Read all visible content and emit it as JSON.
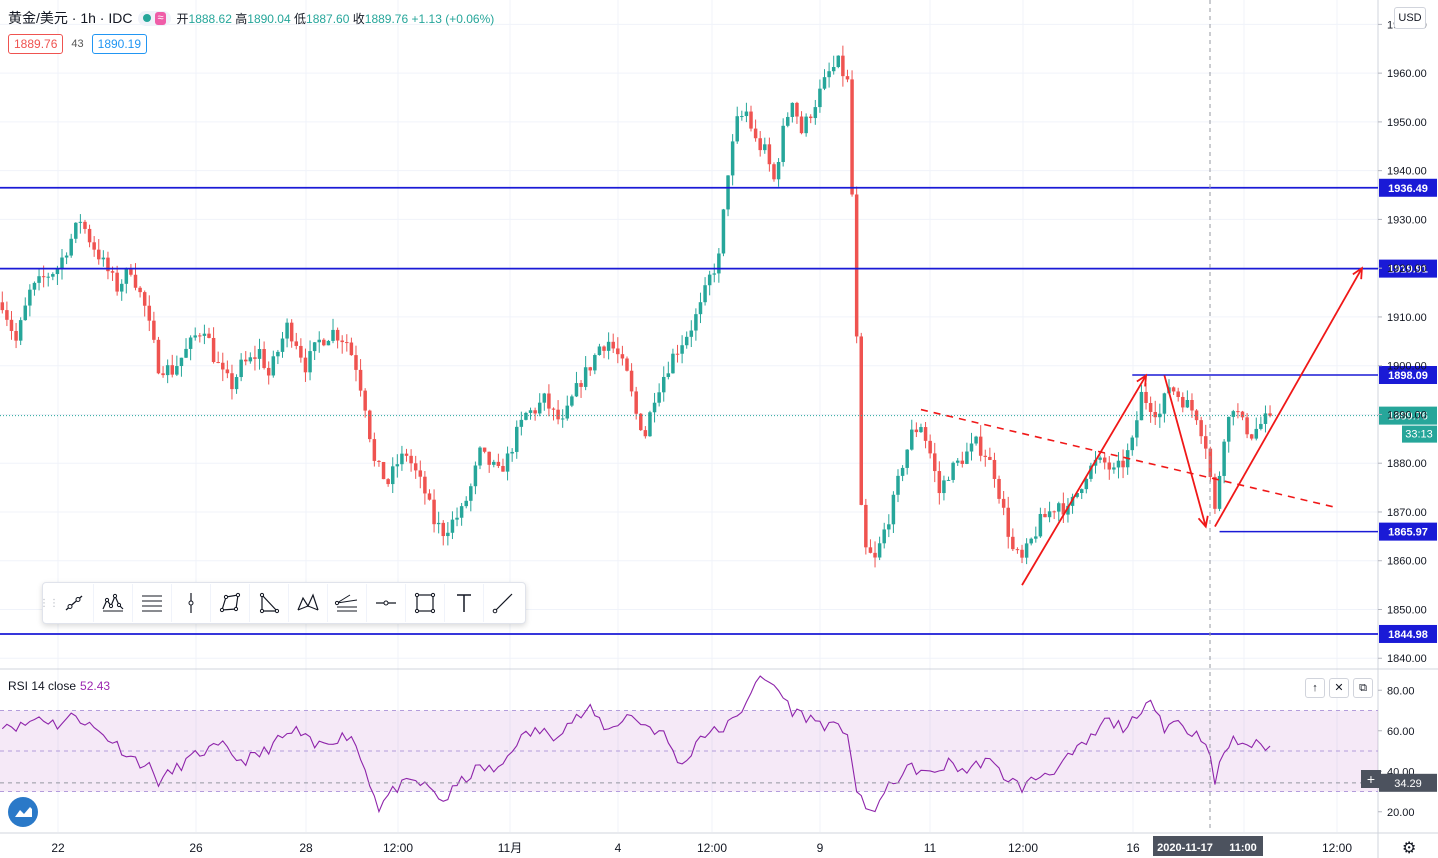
{
  "header": {
    "symbol": "黄金/美元 · 1h · IDC",
    "open_label": "开",
    "open": "1888.62",
    "high_label": "高",
    "high": "1890.04",
    "low_label": "低",
    "low": "1887.60",
    "close_label": "收",
    "close": "1889.76",
    "change": "+1.13 (+0.06%)"
  },
  "quote": {
    "bid": "1889.76",
    "spread": "43",
    "ask": "1890.19"
  },
  "currency_button": "USD",
  "rsi": {
    "label": "RSI 14 close",
    "value": "52.43",
    "crosshair_value": "34.29",
    "ylim": [
      10,
      90
    ],
    "ticks": [
      "80.00",
      "60.00",
      "40.00",
      "20.00"
    ],
    "upper": 70,
    "lower": 30
  },
  "time_axis": {
    "labels": [
      "22",
      "26",
      "28",
      "12:00",
      "11月",
      "4",
      "12:00",
      "9",
      "11",
      "12:00",
      "16",
      "12:00"
    ],
    "current_time": "2020-11-17",
    "current_hour": "11:00"
  },
  "toolbar": {
    "tools": [
      "trend-line-icon",
      "pattern-icon",
      "fib-icon",
      "vertical-line-icon",
      "polygon-icon",
      "triangle-icon",
      "xabcd-icon",
      "fib-fan-icon",
      "horizontal-line-icon",
      "rectangle-icon",
      "text-icon",
      "ray-icon"
    ]
  },
  "chart_data": {
    "type": "candlestick",
    "ylim": [
      1838,
      1975
    ],
    "y_ticks": [
      1970,
      1960,
      1950,
      1940,
      1930,
      1920,
      1910,
      1900,
      1890,
      1880,
      1870,
      1860,
      1850,
      1840
    ],
    "price_tick_labels": [
      "1970.00",
      "1960.00",
      "1950.00",
      "1940.00",
      "1930.00",
      "1920.00",
      "1910.00",
      "1900.00",
      "1890.00",
      "1880.00",
      "1870.00",
      "1860.00",
      "1850.00",
      "1840.00"
    ],
    "grid": true,
    "current_price": "1889.76",
    "countdown": "33:13",
    "horizontal_levels": [
      {
        "value": 1936.49,
        "label": "1936.49"
      },
      {
        "value": 1919.91,
        "label": "1919.91"
      },
      {
        "value": 1898.09,
        "label": "1898.09"
      },
      {
        "value": 1865.97,
        "label": "1865.97"
      },
      {
        "value": 1844.98,
        "label": "1844.98"
      }
    ],
    "price_path": [
      [
        0,
        1913
      ],
      [
        3,
        1905
      ],
      [
        6,
        1915
      ],
      [
        9,
        1918
      ],
      [
        12,
        1920
      ],
      [
        15,
        1926
      ],
      [
        17,
        1930
      ],
      [
        19,
        1926
      ],
      [
        22,
        1921
      ],
      [
        25,
        1916
      ],
      [
        28,
        1920
      ],
      [
        31,
        1912
      ],
      [
        34,
        1900
      ],
      [
        37,
        1899
      ],
      [
        40,
        1903
      ],
      [
        42,
        1906
      ],
      [
        44,
        1908
      ],
      [
        46,
        1902
      ],
      [
        48,
        1898
      ],
      [
        50,
        1896
      ],
      [
        52,
        1900
      ],
      [
        54,
        1901
      ],
      [
        56,
        1903
      ],
      [
        58,
        1898
      ],
      [
        60,
        1903
      ],
      [
        62,
        1908
      ],
      [
        64,
        1905
      ],
      [
        66,
        1900
      ],
      [
        69,
        1905
      ],
      [
        72,
        1907
      ],
      [
        75,
        1905
      ],
      [
        77,
        1900
      ],
      [
        79,
        1892
      ],
      [
        81,
        1880
      ],
      [
        84,
        1876
      ],
      [
        86,
        1880
      ],
      [
        88,
        1882
      ],
      [
        90,
        1878
      ],
      [
        92,
        1874
      ],
      [
        94,
        1868
      ],
      [
        96,
        1866
      ],
      [
        98,
        1868
      ],
      [
        100,
        1870
      ],
      [
        102,
        1875
      ],
      [
        104,
        1882
      ],
      [
        106,
        1880
      ],
      [
        108,
        1878
      ],
      [
        110,
        1881
      ],
      [
        112,
        1886
      ],
      [
        114,
        1890
      ],
      [
        116,
        1891
      ],
      [
        118,
        1893
      ],
      [
        120,
        1890
      ],
      [
        122,
        1888
      ],
      [
        124,
        1893
      ],
      [
        126,
        1897
      ],
      [
        128,
        1900
      ],
      [
        130,
        1904
      ],
      [
        132,
        1905
      ],
      [
        134,
        1902
      ],
      [
        136,
        1898
      ],
      [
        138,
        1890
      ],
      [
        140,
        1886
      ],
      [
        142,
        1894
      ],
      [
        144,
        1898
      ],
      [
        146,
        1902
      ],
      [
        148,
        1905
      ],
      [
        150,
        1908
      ],
      [
        152,
        1912
      ],
      [
        154,
        1918
      ],
      [
        156,
        1922
      ],
      [
        158,
        1940
      ],
      [
        160,
        1950
      ],
      [
        162,
        1952
      ],
      [
        164,
        1946
      ],
      [
        166,
        1944
      ],
      [
        168,
        1938
      ],
      [
        170,
        1948
      ],
      [
        172,
        1955
      ],
      [
        174,
        1948
      ],
      [
        176,
        1952
      ],
      [
        178,
        1956
      ],
      [
        180,
        1960
      ],
      [
        182,
        1962
      ],
      [
        184,
        1958
      ],
      [
        185,
        1935
      ],
      [
        186,
        1905
      ],
      [
        187,
        1870
      ],
      [
        188,
        1862
      ],
      [
        190,
        1860
      ],
      [
        192,
        1866
      ],
      [
        194,
        1872
      ],
      [
        196,
        1880
      ],
      [
        198,
        1886
      ],
      [
        200,
        1888
      ],
      [
        202,
        1882
      ],
      [
        204,
        1874
      ],
      [
        206,
        1878
      ],
      [
        208,
        1880
      ],
      [
        210,
        1882
      ],
      [
        212,
        1884
      ],
      [
        214,
        1882
      ],
      [
        216,
        1878
      ],
      [
        218,
        1870
      ],
      [
        220,
        1862
      ],
      [
        222,
        1860
      ],
      [
        224,
        1864
      ],
      [
        226,
        1868
      ],
      [
        228,
        1870
      ],
      [
        230,
        1872
      ],
      [
        232,
        1870
      ],
      [
        234,
        1874
      ],
      [
        236,
        1878
      ],
      [
        238,
        1880
      ],
      [
        240,
        1880
      ],
      [
        242,
        1878
      ],
      [
        244,
        1880
      ],
      [
        246,
        1884
      ],
      [
        248,
        1894
      ],
      [
        250,
        1892
      ],
      [
        252,
        1890
      ],
      [
        254,
        1896
      ],
      [
        256,
        1894
      ],
      [
        258,
        1892
      ],
      [
        260,
        1890
      ],
      [
        262,
        1884
      ],
      [
        264,
        1870
      ],
      [
        266,
        1886
      ],
      [
        268,
        1892
      ],
      [
        270,
        1888
      ],
      [
        272,
        1886
      ],
      [
        274,
        1888
      ],
      [
        276,
        1889.76
      ]
    ],
    "drawings": {
      "arrows": [
        {
          "from": [
            222,
            1855
          ],
          "to": [
            249,
            1898
          ]
        },
        {
          "from": [
            253,
            1898
          ],
          "to": [
            262,
            1867
          ]
        },
        {
          "from": [
            264,
            1867
          ],
          "to": [
            296,
            1920
          ]
        }
      ],
      "dashed_lines": [
        {
          "from": [
            200,
            1891
          ],
          "to": [
            290,
            1871
          ]
        }
      ],
      "segments": [
        {
          "from": [
            246,
            1898.09
          ],
          "to": [
            322,
            1898.09
          ]
        },
        {
          "from": [
            265,
            1865.97
          ],
          "to": [
            322,
            1865.97
          ]
        }
      ]
    }
  },
  "rsi_data": {
    "series": [
      [
        0,
        64
      ],
      [
        4,
        62
      ],
      [
        8,
        67
      ],
      [
        12,
        63
      ],
      [
        16,
        68
      ],
      [
        20,
        61
      ],
      [
        24,
        55
      ],
      [
        28,
        47
      ],
      [
        32,
        42
      ],
      [
        34,
        35
      ],
      [
        36,
        38
      ],
      [
        40,
        45
      ],
      [
        44,
        50
      ],
      [
        48,
        52
      ],
      [
        52,
        45
      ],
      [
        56,
        48
      ],
      [
        60,
        55
      ],
      [
        64,
        60
      ],
      [
        68,
        52
      ],
      [
        72,
        56
      ],
      [
        76,
        58
      ],
      [
        80,
        35
      ],
      [
        82,
        22
      ],
      [
        84,
        28
      ],
      [
        86,
        32
      ],
      [
        90,
        35
      ],
      [
        94,
        30
      ],
      [
        96,
        25
      ],
      [
        100,
        35
      ],
      [
        104,
        42
      ],
      [
        108,
        40
      ],
      [
        112,
        55
      ],
      [
        116,
        60
      ],
      [
        120,
        58
      ],
      [
        124,
        65
      ],
      [
        128,
        70
      ],
      [
        132,
        60
      ],
      [
        136,
        68
      ],
      [
        140,
        63
      ],
      [
        144,
        58
      ],
      [
        148,
        42
      ],
      [
        152,
        58
      ],
      [
        156,
        60
      ],
      [
        160,
        66
      ],
      [
        164,
        85
      ],
      [
        168,
        83
      ],
      [
        172,
        70
      ],
      [
        176,
        66
      ],
      [
        180,
        62
      ],
      [
        184,
        60
      ],
      [
        186,
        30
      ],
      [
        188,
        20
      ],
      [
        190,
        22
      ],
      [
        194,
        35
      ],
      [
        198,
        42
      ],
      [
        202,
        38
      ],
      [
        206,
        44
      ],
      [
        210,
        40
      ],
      [
        214,
        46
      ],
      [
        218,
        38
      ],
      [
        222,
        32
      ],
      [
        226,
        38
      ],
      [
        230,
        42
      ],
      [
        234,
        50
      ],
      [
        238,
        58
      ],
      [
        240,
        65
      ],
      [
        244,
        62
      ],
      [
        248,
        66
      ],
      [
        250,
        78
      ],
      [
        253,
        62
      ],
      [
        256,
        65
      ],
      [
        258,
        60
      ],
      [
        262,
        56
      ],
      [
        264,
        34
      ],
      [
        266,
        50
      ],
      [
        268,
        55
      ],
      [
        272,
        53
      ],
      [
        276,
        52.43
      ]
    ]
  }
}
